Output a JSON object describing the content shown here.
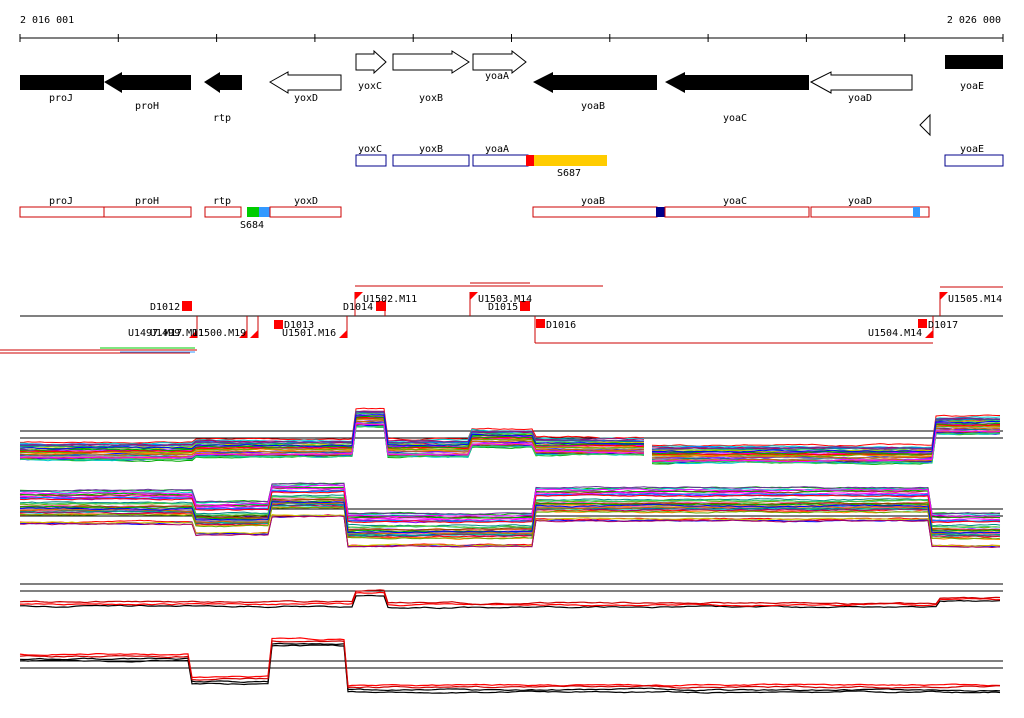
{
  "coords": {
    "start": "2 016 001",
    "end": "2 026 000"
  },
  "genes_top": [
    {
      "name": "proJ",
      "strand": "-",
      "filled": true
    },
    {
      "name": "proH",
      "strand": "-",
      "filled": true
    },
    {
      "name": "rtp",
      "strand": "-",
      "filled": true
    },
    {
      "name": "yoxD",
      "strand": "-",
      "filled": false
    },
    {
      "name": "yoxC",
      "strand": "+",
      "filled": false
    },
    {
      "name": "yoxB",
      "strand": "+",
      "filled": false
    },
    {
      "name": "yoaA",
      "strand": "+",
      "filled": false
    },
    {
      "name": "yoaB",
      "strand": "-",
      "filled": true
    },
    {
      "name": "yoaC",
      "strand": "-",
      "filled": true
    },
    {
      "name": "yoaD",
      "strand": "-",
      "filled": false
    },
    {
      "name": "yoaE",
      "strand": "+",
      "filled": true
    }
  ],
  "segments_plus": [
    {
      "name": "yoxC"
    },
    {
      "name": "yoxB"
    },
    {
      "name": "yoaA"
    },
    {
      "name": "yoaE"
    }
  ],
  "segment_s687": {
    "label": "S687",
    "colors": [
      "#ff0000",
      "#ffcc00"
    ]
  },
  "segments_minus": [
    {
      "name": "proJ"
    },
    {
      "name": "proH"
    },
    {
      "name": "rtp"
    },
    {
      "name": "yoxD"
    },
    {
      "name": "yoaB"
    },
    {
      "name": "yoaC"
    },
    {
      "name": "yoaD"
    }
  ],
  "segment_s684": {
    "label": "S684",
    "colors": [
      "#00cc00",
      "#3399ff"
    ]
  },
  "markers": [
    {
      "label": "D1012"
    },
    {
      "label": "D1013"
    },
    {
      "label": "D1014"
    },
    {
      "label": "D1015"
    },
    {
      "label": "D1016"
    },
    {
      "label": "D1017"
    },
    {
      "label": "U1502.M11"
    },
    {
      "label": "U1503.M14"
    },
    {
      "label": "U1505.M14"
    },
    {
      "label": "U1501.M16"
    },
    {
      "label": "U1504.M14"
    },
    {
      "label": "U1497.M17"
    },
    {
      "label": "U1499.M11"
    },
    {
      "label": "U1500.M19"
    }
  ],
  "colors": {
    "gene_fill": "#000000",
    "segment_plus": "#00008b",
    "segment_minus": "#cc0000",
    "marker": "#ff0000",
    "s684_mark": "#00008b",
    "s684_mark2": "#3399ff"
  }
}
